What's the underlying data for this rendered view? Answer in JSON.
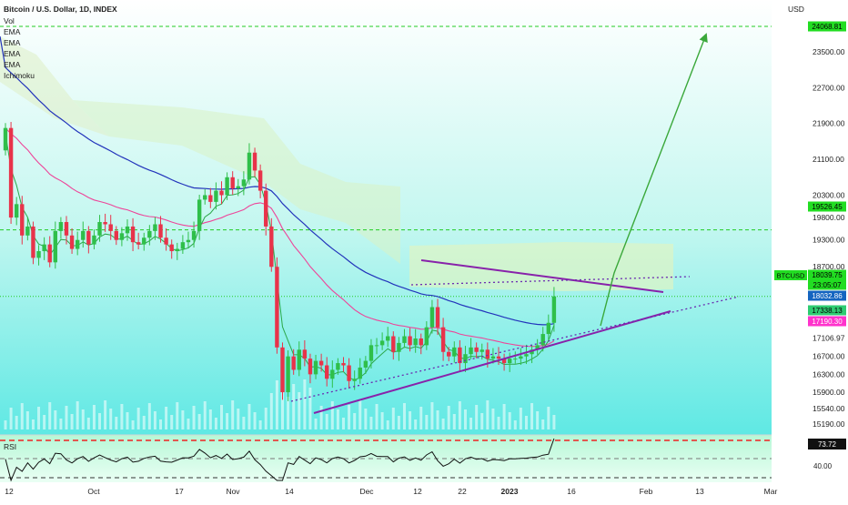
{
  "header": {
    "title": "Bitcoin / U.S. Dollar, 1D, INDEX",
    "indicators": [
      "Vol",
      "EMA",
      "EMA",
      "EMA",
      "EMA",
      "Ichimoku"
    ]
  },
  "axis": {
    "currency": "USD",
    "price_ticks": [
      "23500.00",
      "22700.00",
      "21900.00",
      "21100.00",
      "20300.00",
      "19800.00",
      "19300.00",
      "18700.00",
      "17106.97",
      "16700.00",
      "16300.00",
      "15900.00",
      "15540.00",
      "15190.00"
    ],
    "date_ticks": [
      {
        "label": "12",
        "bold": false
      },
      {
        "label": "Oct",
        "bold": false
      },
      {
        "label": "17",
        "bold": false
      },
      {
        "label": "Nov",
        "bold": false
      },
      {
        "label": "14",
        "bold": false
      },
      {
        "label": "Dec",
        "bold": false
      },
      {
        "label": "12",
        "bold": false
      },
      {
        "label": "22",
        "bold": false
      },
      {
        "label": "2023",
        "bold": true
      },
      {
        "label": "16",
        "bold": false
      },
      {
        "label": "Feb",
        "bold": false
      },
      {
        "label": "13",
        "bold": false
      },
      {
        "label": "Mar",
        "bold": false
      }
    ]
  },
  "price_badges": [
    {
      "label": "24068.81",
      "color": "#22dd22",
      "text_color": "#000000"
    },
    {
      "label": "19526.45",
      "color": "#22dd22",
      "text_color": "#000000"
    },
    {
      "label": "18039.75",
      "color": "#22dd22",
      "text_color": "#000000"
    },
    {
      "label": "23:05:07",
      "color": "#22dd22",
      "text_color": "#000000"
    },
    {
      "label": "18032.86",
      "color": "#1565c0",
      "text_color": "#ffffff"
    },
    {
      "label": "17338.13",
      "color": "#2ecc71",
      "text_color": "#000000"
    },
    {
      "label": "17190.30",
      "color": "#ff33cc",
      "text_color": "#ffffff"
    }
  ],
  "symbol_badge": {
    "label": "BTCUSD",
    "color": "#22dd22"
  },
  "rsi": {
    "label": "RSI",
    "value": "73.72",
    "tick": "40.00"
  },
  "colors": {
    "up": "#2fbf4a",
    "down": "#e8334a",
    "ema_blue": "#2233bb",
    "ema_pink": "#ee4499",
    "trend_purple": "#8822aa",
    "arrow_green": "#3aa83a",
    "level_green": "#22cc22"
  },
  "chart_data": {
    "type": "candlestick",
    "title": "Bitcoin / U.S. Dollar, 1D, INDEX",
    "x_range": [
      "2022-09-12",
      "2023-03-01"
    ],
    "y_unit": "USD",
    "horizontal_levels": [
      24068.81,
      19526.45,
      18039.75
    ],
    "last_price": 18039.75,
    "ema_values": [
      18032.86,
      17338.13,
      17190.3
    ],
    "rsi_last": 73.72,
    "trend_lines": [
      {
        "name": "resistance",
        "from": [
          "2022-12-12",
          18400
        ],
        "to": [
          "2023-02-01",
          17460
        ]
      },
      {
        "name": "support",
        "from": [
          "2022-11-14",
          15320
        ],
        "to": [
          "2023-02-01",
          17600
        ]
      }
    ],
    "projection_target": 24068.81,
    "closes": [
      21800,
      19800,
      20100,
      19400,
      19600,
      18900,
      19050,
      19200,
      18800,
      19500,
      19700,
      19400,
      19100,
      19300,
      19500,
      19200,
      19400,
      19700,
      19650,
      19500,
      19300,
      19450,
      19600,
      19250,
      19200,
      19350,
      19500,
      19650,
      19350,
      19200,
      19050,
      19100,
      19250,
      19300,
      19500,
      20200,
      20300,
      20150,
      20400,
      20300,
      20700,
      20450,
      20500,
      20650,
      21250,
      20850,
      20400,
      19600,
      18700,
      16900,
      15900,
      16700,
      16400,
      16850,
      16650,
      16300,
      16600,
      16500,
      16200,
      16400,
      16550,
      16500,
      16150,
      16200,
      16450,
      16600,
      16950,
      16950,
      17050,
      17150,
      16800,
      17000,
      17150,
      16950,
      17100,
      16950,
      17350,
      17800,
      17350,
      16800,
      16700,
      16900,
      16550,
      16750,
      16900,
      16800,
      16850,
      16650,
      16700,
      16650,
      16550,
      16650,
      16650,
      16700,
      16750,
      16850,
      16950,
      17200,
      17450,
      18040
    ]
  }
}
